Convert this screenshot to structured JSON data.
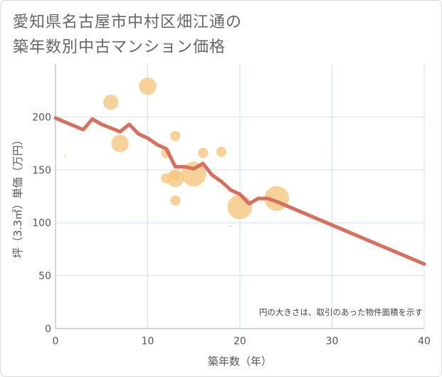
{
  "title": {
    "line1": "愛知県名古屋市中村区畑江通の",
    "line2": "築年数別中古マンション価格"
  },
  "chart_data": {
    "type": "scatter",
    "title": "愛知県名古屋市中村区畑江通の築年数別中古マンション価格",
    "xlabel": "築年数（年）",
    "ylabel": "坪（3.3㎡）単価（万円）",
    "xlim": [
      0,
      40
    ],
    "ylim": [
      0,
      250
    ],
    "x_ticks": [
      "0",
      "10",
      "20",
      "30",
      "40"
    ],
    "y_ticks": [
      "0",
      "50",
      "100",
      "150",
      "200"
    ],
    "grid": true,
    "note": "円の大きさは、取引のあった物件面積を示す",
    "colors": {
      "bubble": "#f5c77e",
      "line": "#d66f5d",
      "grid": "#cfe0ee",
      "axis": "#aaaaaa"
    },
    "series": [
      {
        "type": "bubble",
        "points": [
          {
            "x": 1,
            "y": 163,
            "size": 1
          },
          {
            "x": 6,
            "y": 214,
            "size": 5
          },
          {
            "x": 7,
            "y": 175,
            "size": 6
          },
          {
            "x": 10,
            "y": 229,
            "size": 6
          },
          {
            "x": 12,
            "y": 166,
            "size": 3
          },
          {
            "x": 12,
            "y": 142,
            "size": 3
          },
          {
            "x": 13,
            "y": 182,
            "size": 3
          },
          {
            "x": 13,
            "y": 145,
            "size": 3
          },
          {
            "x": 13,
            "y": 142,
            "size": 6
          },
          {
            "x": 13,
            "y": 121,
            "size": 3
          },
          {
            "x": 15,
            "y": 146,
            "size": 9
          },
          {
            "x": 16,
            "y": 166,
            "size": 3
          },
          {
            "x": 18,
            "y": 167,
            "size": 3
          },
          {
            "x": 19,
            "y": 97,
            "size": 1
          },
          {
            "x": 20,
            "y": 115,
            "size": 9
          },
          {
            "x": 24,
            "y": 123,
            "size": 9
          }
        ]
      },
      {
        "type": "line",
        "points": [
          {
            "x": 0,
            "y": 199
          },
          {
            "x": 3,
            "y": 188
          },
          {
            "x": 4,
            "y": 198
          },
          {
            "x": 5,
            "y": 193
          },
          {
            "x": 7,
            "y": 186
          },
          {
            "x": 8,
            "y": 193
          },
          {
            "x": 9,
            "y": 184
          },
          {
            "x": 10,
            "y": 180
          },
          {
            "x": 11,
            "y": 174
          },
          {
            "x": 12,
            "y": 170
          },
          {
            "x": 13,
            "y": 153
          },
          {
            "x": 14,
            "y": 153
          },
          {
            "x": 15,
            "y": 151
          },
          {
            "x": 16,
            "y": 156
          },
          {
            "x": 17,
            "y": 145
          },
          {
            "x": 18,
            "y": 139
          },
          {
            "x": 19,
            "y": 131
          },
          {
            "x": 20,
            "y": 127
          },
          {
            "x": 21,
            "y": 118
          },
          {
            "x": 22,
            "y": 123
          },
          {
            "x": 23,
            "y": 123
          },
          {
            "x": 24,
            "y": 120
          },
          {
            "x": 40,
            "y": 61
          }
        ]
      }
    ]
  }
}
